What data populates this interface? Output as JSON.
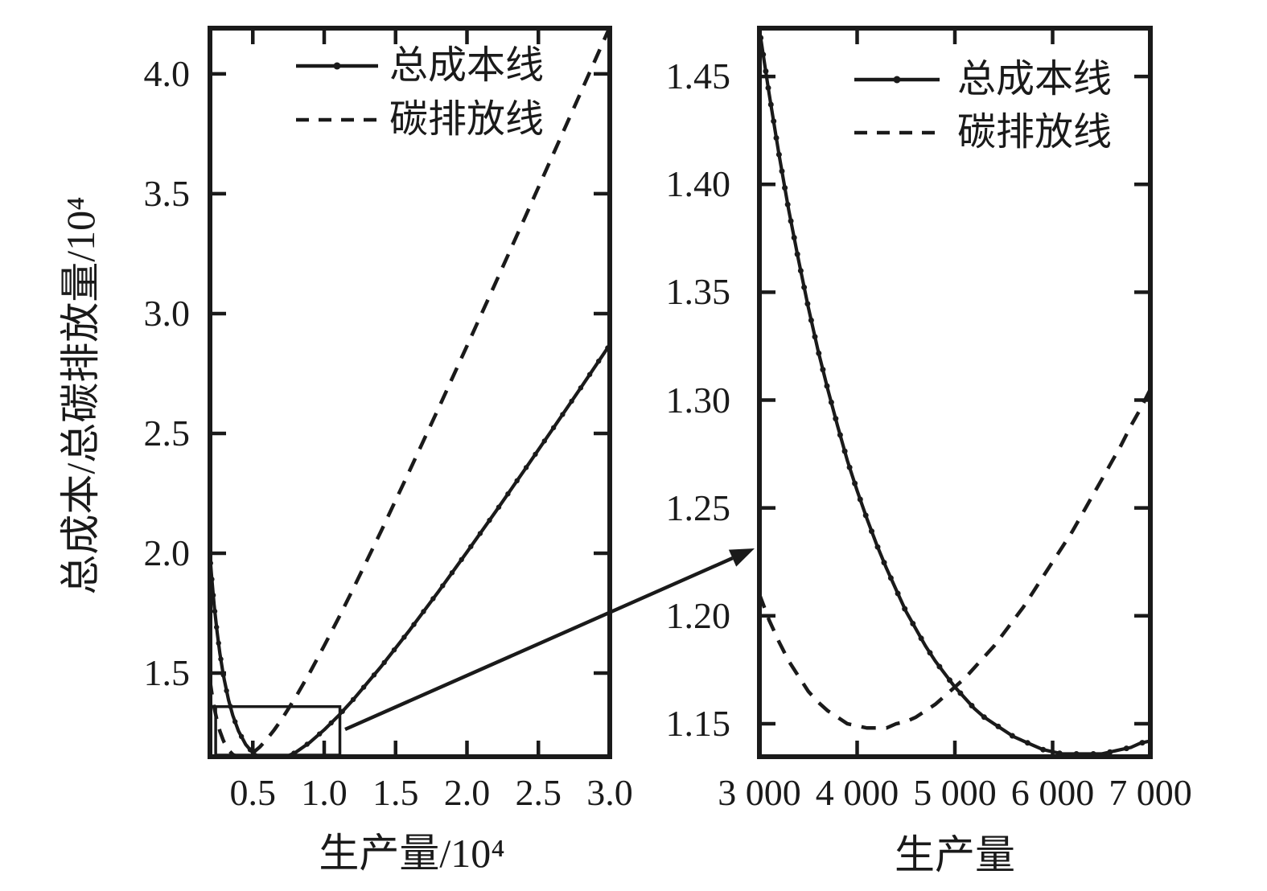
{
  "figure": {
    "background": "#ffffff",
    "ink_color": "#1a1a1a"
  },
  "chart_data": [
    {
      "type": "line",
      "panel": "overview",
      "title": "",
      "xlabel": "生产量/10⁴",
      "ylabel": "总成本/总碳排放量/10⁴",
      "xlim": [
        0.2,
        3.0
      ],
      "ylim": [
        1.151,
        4.191
      ],
      "grid": false,
      "legend_position": "upper-left-inside",
      "x_ticks": {
        "values": [
          0.5,
          1.0,
          1.5,
          2.0,
          2.5,
          3.0
        ],
        "labels": [
          "0.5",
          "1.0",
          "1.5",
          "2.0",
          "2.5",
          "3.0"
        ]
      },
      "y_ticks": {
        "values": [
          1.5,
          2.0,
          2.5,
          3.0,
          3.5,
          4.0
        ],
        "labels": [
          "1.5",
          "2.0",
          "2.5",
          "3.0",
          "3.5",
          "4.0"
        ]
      },
      "legend": [
        {
          "label": "总成本线",
          "style": "solid_with_dot_markers"
        },
        {
          "label": "碳排放线",
          "style": "dashed"
        }
      ],
      "zoom_box": {
        "x": [
          0.24,
          1.11
        ],
        "y": [
          1.151,
          1.36
        ]
      },
      "series": [
        {
          "name": "总成本线",
          "style": "solid_with_dot_markers",
          "x": [
            0.2,
            0.21,
            0.23,
            0.25,
            0.27,
            0.29,
            0.3,
            0.33,
            0.36,
            0.4,
            0.45,
            0.5,
            0.55,
            0.6,
            0.65,
            0.7,
            0.8,
            0.9,
            1.0,
            1.1,
            1.2,
            1.4,
            1.6,
            1.8,
            2.0,
            2.2,
            2.4,
            2.6,
            2.8,
            3.0
          ],
          "y": [
            1.992,
            1.914,
            1.78,
            1.671,
            1.58,
            1.505,
            1.472,
            1.388,
            1.323,
            1.258,
            1.202,
            1.167,
            1.147,
            1.137,
            1.136,
            1.142,
            1.169,
            1.211,
            1.263,
            1.322,
            1.387,
            1.528,
            1.68,
            1.84,
            2.005,
            2.173,
            2.345,
            2.518,
            2.693,
            2.87
          ]
        },
        {
          "name": "碳排放线",
          "style": "dashed",
          "x": [
            0.2,
            0.21,
            0.23,
            0.25,
            0.27,
            0.29,
            0.3,
            0.33,
            0.36,
            0.4,
            0.45,
            0.5,
            0.55,
            0.6,
            0.65,
            0.7,
            0.8,
            0.9,
            1.0,
            1.1,
            1.2,
            1.4,
            1.6,
            1.8,
            2.0,
            2.2,
            2.4,
            2.6,
            2.8,
            3.0
          ],
          "y": [
            1.47,
            1.427,
            1.355,
            1.3,
            1.257,
            1.224,
            1.21,
            1.179,
            1.16,
            1.149,
            1.151,
            1.167,
            1.192,
            1.225,
            1.263,
            1.305,
            1.399,
            1.503,
            1.614,
            1.729,
            1.848,
            2.094,
            2.347,
            2.604,
            2.865,
            3.128,
            3.393,
            3.66,
            3.927,
            4.195
          ]
        }
      ]
    },
    {
      "type": "line",
      "panel": "zoomed-inset",
      "title": "",
      "xlabel": "生产量",
      "ylabel": "",
      "xlim": [
        3000,
        7000
      ],
      "ylim": [
        1.1347,
        1.4724
      ],
      "grid": false,
      "legend_position": "upper-right-inside",
      "x_ticks": {
        "values": [
          3000,
          4000,
          5000,
          6000,
          7000
        ],
        "labels": [
          "3 000",
          "4 000",
          "5 000",
          "6 000",
          "7 000"
        ]
      },
      "y_ticks": {
        "values": [
          1.15,
          1.2,
          1.25,
          1.3,
          1.35,
          1.4,
          1.45
        ],
        "labels": [
          "1.15",
          "1.20",
          "1.25",
          "1.30",
          "1.35",
          "1.40",
          "1.45"
        ]
      },
      "legend": [
        {
          "label": "总成本线",
          "style": "solid_with_dot_markers"
        },
        {
          "label": "碳排放线",
          "style": "dashed"
        }
      ],
      "series": [
        {
          "name": "总成本线",
          "style": "solid_with_dot_markers",
          "x": [
            3000,
            3100,
            3200,
            3300,
            3400,
            3500,
            3600,
            3700,
            3800,
            3900,
            4000,
            4100,
            4200,
            4300,
            4400,
            4500,
            4600,
            4700,
            4800,
            4900,
            5000,
            5100,
            5200,
            5300,
            5400,
            5500,
            5600,
            5700,
            5800,
            5900,
            6000,
            6100,
            6200,
            6300,
            6400,
            6500,
            6600,
            6700,
            6800,
            6900,
            7000
          ],
          "y": [
            1.4718,
            1.442,
            1.414,
            1.388,
            1.365,
            1.343,
            1.323,
            1.305,
            1.288,
            1.272,
            1.258,
            1.245,
            1.233,
            1.222,
            1.212,
            1.202,
            1.194,
            1.186,
            1.179,
            1.173,
            1.167,
            1.162,
            1.157,
            1.153,
            1.15,
            1.147,
            1.144,
            1.142,
            1.14,
            1.138,
            1.137,
            1.136,
            1.136,
            1.136,
            1.136,
            1.136,
            1.137,
            1.138,
            1.139,
            1.141,
            1.142
          ]
        },
        {
          "name": "碳排放线",
          "style": "dashed",
          "x": [
            3000,
            3100,
            3200,
            3300,
            3400,
            3500,
            3600,
            3700,
            3800,
            3900,
            4000,
            4100,
            4200,
            4300,
            4400,
            4500,
            4600,
            4700,
            4800,
            4900,
            5000,
            5100,
            5200,
            5300,
            5400,
            5500,
            5600,
            5700,
            5800,
            5900,
            6000,
            6100,
            6200,
            6300,
            6400,
            6500,
            6600,
            6700,
            6800,
            6900,
            7000
          ],
          "y": [
            1.21,
            1.198,
            1.188,
            1.179,
            1.172,
            1.165,
            1.16,
            1.156,
            1.153,
            1.15,
            1.149,
            1.148,
            1.148,
            1.148,
            1.15,
            1.151,
            1.153,
            1.156,
            1.159,
            1.163,
            1.167,
            1.171,
            1.176,
            1.181,
            1.186,
            1.192,
            1.198,
            1.204,
            1.211,
            1.218,
            1.225,
            1.232,
            1.239,
            1.247,
            1.255,
            1.263,
            1.271,
            1.279,
            1.288,
            1.296,
            1.305
          ]
        }
      ]
    }
  ]
}
